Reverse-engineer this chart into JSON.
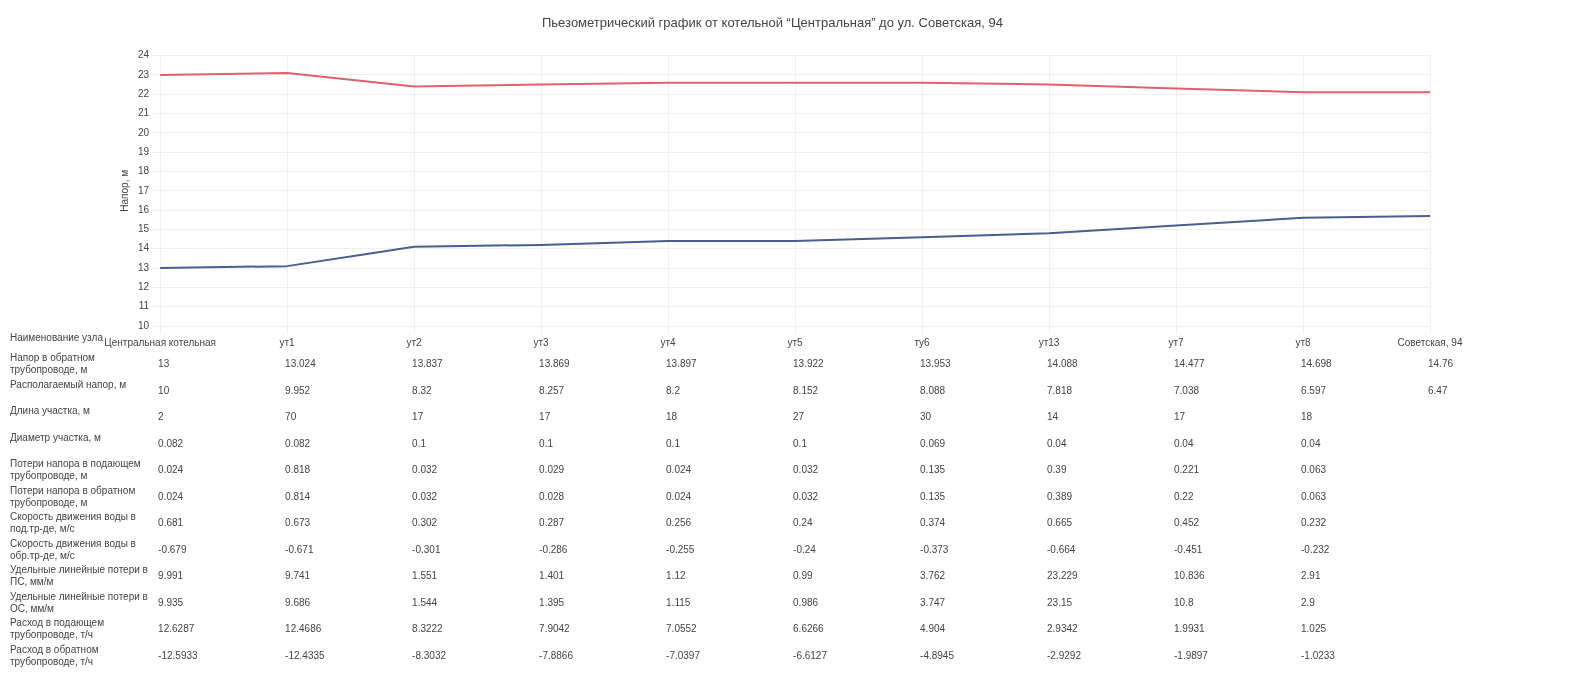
{
  "chart_data": {
    "type": "line",
    "title": "Пьезометрический график от котельной “Центральная” до ул. Советская, 94",
    "xlabel": "Наименование узла",
    "ylabel": "Напор, м",
    "categories": [
      "Центральная котельная",
      "ут1",
      "ут2",
      "ут3",
      "ут4",
      "ут5",
      "ту6",
      "ут13",
      "ут7",
      "ут8",
      "Советская, 94"
    ],
    "series": [
      {
        "color": "#e0606e",
        "values": [
          23.0,
          23.1,
          22.4,
          22.5,
          22.6,
          22.6,
          22.6,
          22.5,
          22.3,
          22.1,
          22.1
        ]
      },
      {
        "color": "#4a5f8e",
        "values": [
          13.0,
          13.1,
          14.1,
          14.2,
          14.4,
          14.4,
          14.6,
          14.8,
          15.2,
          15.6,
          15.7
        ]
      }
    ],
    "ylim": [
      10,
      24
    ],
    "yticks": [
      10,
      11,
      12,
      13,
      14,
      15,
      16,
      17,
      18,
      19,
      20,
      21,
      22,
      23,
      24
    ],
    "grid": true,
    "legend": false,
    "marker": "none",
    "line_style": "solid",
    "annotations": [
      "Напор в обратном трубопроводе, м",
      "13",
      "13.024",
      "13.837",
      "13.869",
      "13.897",
      "13.922",
      "13.953",
      "14.088",
      "14.477",
      "14.698",
      "14.76",
      "Располагаемый напор, м",
      "10",
      "9.952",
      "8.32",
      "8.257",
      "8.2",
      "8.152",
      "8.088",
      "7.818",
      "7.038",
      "6.597",
      "6.47",
      "Длина участка, м",
      "2",
      "70",
      "17",
      "17",
      "18",
      "27",
      "30",
      "14",
      "17",
      "18",
      null,
      "Диаметр участка, м",
      "0.082",
      "0.082",
      "0.1",
      "0.1",
      "0.1",
      "0.1",
      "0.069",
      "0.04",
      "0.04",
      "0.04",
      null,
      "Потери напора в подающем трубопроводе, м",
      "0.024",
      "0.818",
      "0.032",
      "0.029",
      "0.024",
      "0.032",
      "0.135",
      "0.39",
      "0.221",
      "0.063",
      null,
      "Потери напора в обратном трубопроводе, м",
      "0.024",
      "0.814",
      "0.032",
      "0.028",
      "0.024",
      "0.032",
      "0.135",
      "0.389",
      "0.22",
      "0.063",
      null,
      "Скорость движения воды в под.тр-де, м/с",
      "0.681",
      "0.673",
      "0.302",
      "0.287",
      "0.256",
      "0.24",
      "0.374",
      "0.665",
      "0.452",
      "0.232",
      null,
      "Скорость движения воды в обр.тр-де, м/с",
      "-0.679",
      "-0.671",
      "-0.301",
      "-0.286",
      "-0.255",
      "-0.24",
      "-0.373",
      "-0.664",
      "-0.451",
      "-0.232",
      null,
      "Удельные линейные потери в ПС, мм/м",
      "9.991",
      "9.741",
      "1.551",
      "1.401",
      "1.12",
      "0.99",
      "3.762",
      "23.229",
      "10.836",
      "2.91",
      null,
      "Удельные линейные потери в ОС, мм/м",
      "9.935",
      "9.686",
      "1.544",
      "1.395",
      "1.115",
      "0.986",
      "3.747",
      "23.15",
      "10.8",
      "2.9",
      null,
      "Расход в подающем трубопроводе, т/ч",
      "12.6287",
      "12.4686",
      "8.3222",
      "7.9042",
      "7.0552",
      "6.6266",
      "4.904",
      "2.9342",
      "1.9931",
      "1.025",
      null,
      "Расход в обратном трубопроводе, т/ч",
      "-12.5933",
      "-12.4335",
      "-8.3032",
      "-7.8866",
      "-7.0397",
      "-6.6127",
      "-4.8945",
      "-2.9292",
      "-1.9897",
      "-1.0233",
      null
    ]
  }
}
